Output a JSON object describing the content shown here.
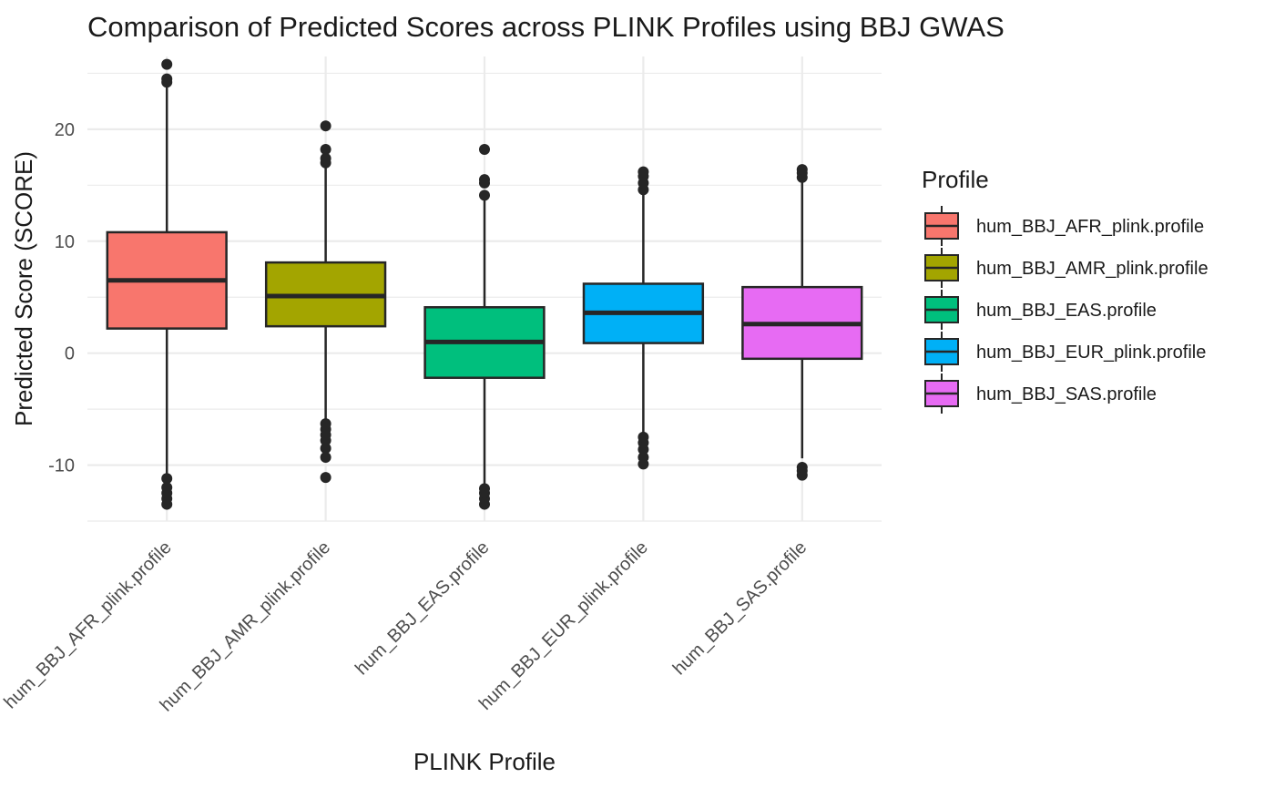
{
  "chart_data": {
    "type": "box",
    "title": "Comparison of Predicted Scores across PLINK Profiles using BBJ GWAS",
    "xlabel": "PLINK Profile",
    "ylabel": "Predicted Score (SCORE)",
    "ylim": [
      -15,
      26.5
    ],
    "yticks": [
      -10,
      0,
      10,
      20
    ],
    "ytick_labels": [
      "-10",
      "0",
      "10",
      "20"
    ],
    "grid": true,
    "legend": {
      "title": "Profile",
      "position": "right"
    },
    "categories": [
      "hum_BBJ_AFR_plink.profile",
      "hum_BBJ_AMR_plink.profile",
      "hum_BBJ_EAS.profile",
      "hum_BBJ_EUR_plink.profile",
      "hum_BBJ_SAS.profile"
    ],
    "colors": [
      "#F8766D",
      "#A3A500",
      "#00BF7D",
      "#00B0F6",
      "#E76BF3"
    ],
    "boxes": [
      {
        "whisker_low": -11.0,
        "q1": 2.2,
        "median": 6.5,
        "q3": 10.8,
        "whisker_high": 24.0,
        "outliers": [
          -13.5,
          -13.0,
          -12.5,
          -12.0,
          -11.2,
          24.2,
          24.5,
          25.8
        ]
      },
      {
        "whisker_low": -6.0,
        "q1": 2.4,
        "median": 5.1,
        "q3": 8.1,
        "whisker_high": 16.7,
        "outliers": [
          -11.1,
          -9.3,
          -8.5,
          -7.8,
          -7.3,
          -6.8,
          -6.3,
          17.0,
          17.4,
          18.2,
          20.3
        ]
      },
      {
        "whisker_low": -12.0,
        "q1": -2.2,
        "median": 1.0,
        "q3": 4.1,
        "whisker_high": 13.8,
        "outliers": [
          -13.5,
          -13.0,
          -12.5,
          -12.1,
          14.1,
          15.2,
          15.5,
          18.2
        ]
      },
      {
        "whisker_low": -7.3,
        "q1": 0.9,
        "median": 3.6,
        "q3": 6.2,
        "whisker_high": 14.2,
        "outliers": [
          -9.9,
          -9.3,
          -8.6,
          -8.0,
          -7.5,
          14.6,
          15.2,
          15.8,
          16.2
        ]
      },
      {
        "whisker_low": -9.4,
        "q1": -0.5,
        "median": 2.6,
        "q3": 5.9,
        "whisker_high": 15.5,
        "outliers": [
          -10.9,
          -10.5,
          -10.2,
          15.7,
          16.1,
          16.4
        ]
      }
    ]
  }
}
